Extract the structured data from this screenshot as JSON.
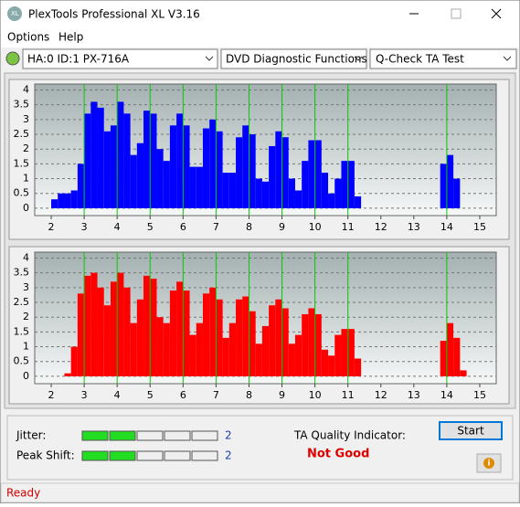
{
  "window": {
    "title": "PlexTools Professional XL V3.16"
  },
  "menu": [
    "Options",
    "Help"
  ],
  "toolbar": {
    "drive": "HA:0 ID:1  PX-716A",
    "function": "DVD Diagnostic Functions",
    "test": "Q-Check TA Test"
  },
  "chart_data": [
    {
      "type": "histogram",
      "color": "#0000ff",
      "marker_color": "#00cc00",
      "grid": true,
      "xlim": [
        1.5,
        15.5
      ],
      "ylim": [
        -0.25,
        4.2
      ],
      "xticks": [
        2,
        3,
        4,
        5,
        6,
        7,
        8,
        9,
        10,
        11,
        12,
        13,
        14,
        15
      ],
      "yticks": [
        0,
        0.5,
        1,
        1.5,
        2,
        2.5,
        3,
        3.5,
        4
      ],
      "markers": [
        3,
        4,
        5,
        6,
        7,
        8,
        9,
        10,
        11,
        14
      ],
      "bins": [
        2.0,
        2.2,
        2.4,
        2.6,
        2.8,
        3.0,
        3.2,
        3.4,
        3.6,
        3.8,
        4.0,
        4.2,
        4.4,
        4.6,
        4.8,
        5.0,
        5.2,
        5.4,
        5.6,
        5.8,
        6.0,
        6.2,
        6.4,
        6.6,
        6.8,
        7.0,
        7.2,
        7.4,
        7.6,
        7.8,
        8.0,
        8.2,
        8.4,
        8.6,
        8.8,
        9.0,
        9.2,
        9.4,
        9.6,
        9.8,
        10.0,
        10.2,
        10.4,
        10.6,
        10.8,
        11.0,
        11.2,
        11.4,
        11.6,
        11.8,
        12.0,
        12.2,
        12.4,
        12.6,
        12.8,
        13.0,
        13.2,
        13.4,
        13.6,
        13.8,
        14.0,
        14.2,
        14.4,
        14.6
      ],
      "values": [
        0.3,
        0.5,
        0.5,
        0.6,
        1.5,
        3.2,
        3.6,
        3.4,
        2.6,
        2.8,
        3.6,
        3.2,
        1.8,
        2.2,
        3.3,
        3.2,
        2.0,
        1.6,
        2.8,
        3.2,
        2.8,
        1.4,
        1.4,
        2.7,
        3.0,
        2.6,
        1.2,
        1.2,
        2.4,
        2.8,
        2.5,
        1.0,
        0.9,
        2.1,
        2.6,
        2.4,
        1.0,
        0.6,
        1.6,
        2.3,
        2.3,
        1.2,
        0.5,
        1.0,
        1.6,
        1.6,
        0.4,
        0,
        0,
        0,
        0,
        0,
        0,
        0,
        0,
        0,
        0,
        0,
        0,
        1.5,
        1.8,
        1.0,
        0
      ]
    },
    {
      "type": "histogram",
      "color": "#ff0000",
      "marker_color": "#00cc00",
      "grid": true,
      "xlim": [
        1.5,
        15.5
      ],
      "ylim": [
        -0.25,
        4.2
      ],
      "xticks": [
        2,
        3,
        4,
        5,
        6,
        7,
        8,
        9,
        10,
        11,
        12,
        13,
        14,
        15
      ],
      "yticks": [
        0,
        0.5,
        1,
        1.5,
        2,
        2.5,
        3,
        3.5,
        4
      ],
      "markers": [
        3,
        4,
        5,
        6,
        7,
        8,
        9,
        10,
        11,
        14
      ],
      "bins": [
        2.0,
        2.2,
        2.4,
        2.6,
        2.8,
        3.0,
        3.2,
        3.4,
        3.6,
        3.8,
        4.0,
        4.2,
        4.4,
        4.6,
        4.8,
        5.0,
        5.2,
        5.4,
        5.6,
        5.8,
        6.0,
        6.2,
        6.4,
        6.6,
        6.8,
        7.0,
        7.2,
        7.4,
        7.6,
        7.8,
        8.0,
        8.2,
        8.4,
        8.6,
        8.8,
        9.0,
        9.2,
        9.4,
        9.6,
        9.8,
        10.0,
        10.2,
        10.4,
        10.6,
        10.8,
        11.0,
        11.2,
        11.4,
        11.6,
        11.8,
        12.0,
        12.2,
        12.4,
        12.6,
        12.8,
        13.0,
        13.2,
        13.4,
        13.6,
        13.8,
        14.0,
        14.2,
        14.4,
        14.6
      ],
      "values": [
        0,
        0,
        0.1,
        1.0,
        2.8,
        3.4,
        3.5,
        3.0,
        2.4,
        3.2,
        3.5,
        3.0,
        1.8,
        2.6,
        3.4,
        3.3,
        2.0,
        1.8,
        2.9,
        3.2,
        2.9,
        1.4,
        1.8,
        2.8,
        3.0,
        2.6,
        1.3,
        1.8,
        2.6,
        2.7,
        2.2,
        1.1,
        1.7,
        2.4,
        2.6,
        2.3,
        1.1,
        1.4,
        2.1,
        2.3,
        2.1,
        0.9,
        0.7,
        1.4,
        1.6,
        1.6,
        0.6,
        0,
        0,
        0,
        0,
        0,
        0,
        0,
        0,
        0,
        0,
        0,
        0,
        1.2,
        1.8,
        1.3,
        0.2
      ]
    }
  ],
  "jitter": {
    "label": "Jitter:",
    "value": 2
  },
  "peak_shift": {
    "label": "Peak Shift:",
    "value": 2
  },
  "ta_quality": {
    "label": "TA Quality Indicator:",
    "value": "Not Good"
  },
  "start_button": "Start",
  "status": "Ready"
}
